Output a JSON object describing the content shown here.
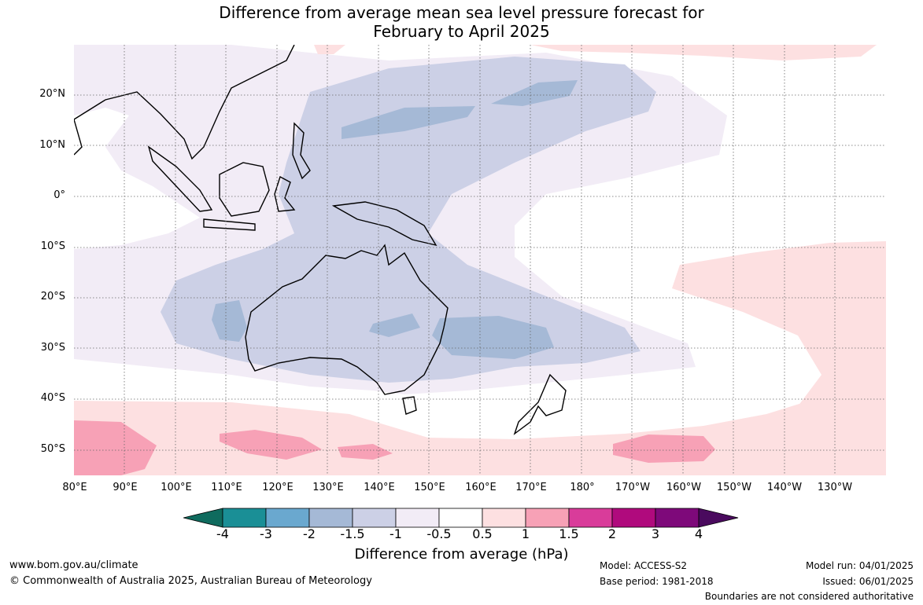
{
  "title_line1": "Difference from average mean sea level pressure forecast for",
  "title_line2": "February to April 2025",
  "lat_labels": [
    "20°N",
    "10°N",
    "0°",
    "10°S",
    "20°S",
    "30°S",
    "40°S",
    "50°S"
  ],
  "lon_labels": [
    "80°E",
    "90°E",
    "100°E",
    "110°E",
    "120°E",
    "130°E",
    "140°E",
    "150°E",
    "160°E",
    "170°E",
    "180°",
    "170°W",
    "160°W",
    "150°W",
    "140°W",
    "130°W"
  ],
  "colorbar": {
    "ticks": [
      "-4",
      "-3",
      "-2",
      "-1.5",
      "-1",
      "-0.5",
      "0.5",
      "1",
      "1.5",
      "2",
      "3",
      "4"
    ],
    "colors": [
      "#0f6b5e",
      "#1a8f96",
      "#6aa8cf",
      "#a5b9d6",
      "#ccd0e6",
      "#f2ecf6",
      "#ffffff",
      "#fde0e1",
      "#f7a1b6",
      "#d93c9a",
      "#b00a7d",
      "#7e097a",
      "#4a0a5e"
    ],
    "title": "Difference from average (hPa)"
  },
  "footer": {
    "website": "www.bom.gov.au/climate",
    "copyright": "© Commonwealth of Australia 2025, Australian Bureau of Meteorology",
    "model": "Model: ACCESS-S2",
    "base_period": "Base period: 1981-2018",
    "model_run": "Model run: 04/01/2025",
    "issued": "Issued: 06/01/2025",
    "disclaimer": "Boundaries are not considered authoritative"
  }
}
